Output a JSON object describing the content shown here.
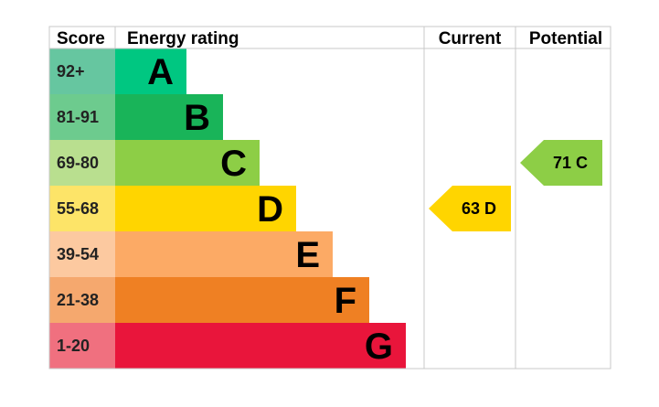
{
  "chart_data": {
    "type": "table",
    "headers": {
      "score": "Score",
      "rating": "Energy rating",
      "current": "Current",
      "potential": "Potential"
    },
    "bands": [
      {
        "letter": "A",
        "range": "92+",
        "bar_color": "#00c781",
        "score_color": "#66c6a0"
      },
      {
        "letter": "B",
        "range": "81-91",
        "bar_color": "#19b459",
        "score_color": "#6dcb8e"
      },
      {
        "letter": "C",
        "range": "69-80",
        "bar_color": "#8dce46",
        "score_color": "#b9df8f"
      },
      {
        "letter": "D",
        "range": "55-68",
        "bar_color": "#ffd500",
        "score_color": "#fde468"
      },
      {
        "letter": "E",
        "range": "39-54",
        "bar_color": "#fcaa65",
        "score_color": "#fcc9a0"
      },
      {
        "letter": "F",
        "range": "21-38",
        "bar_color": "#ef8023",
        "score_color": "#f5a86e"
      },
      {
        "letter": "G",
        "range": "1-20",
        "bar_color": "#e9153b",
        "score_color": "#f0707f"
      }
    ],
    "current": {
      "value": 63,
      "band": "D",
      "label": "63  D"
    },
    "potential": {
      "value": 71,
      "band": "C",
      "label": "71  C"
    }
  }
}
